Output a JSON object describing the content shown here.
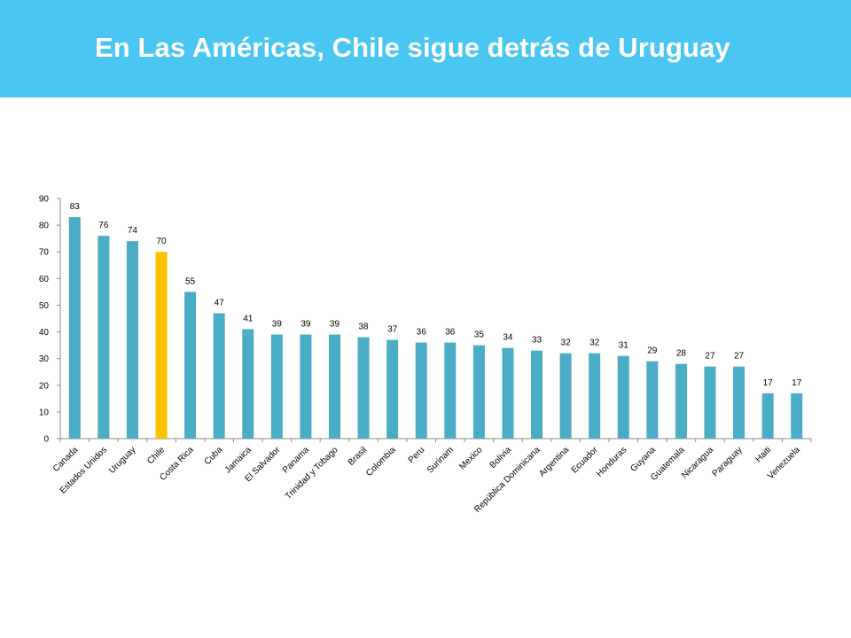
{
  "slide": {
    "title": "En Las Américas, Chile sigue detrás de Uruguay",
    "header_color": "#4ac6f2",
    "title_color": "#ffffff"
  },
  "chart_data": {
    "type": "bar",
    "categories": [
      "Canada",
      "Estados Unidos",
      "Uruguay",
      "Chile",
      "Costa Rica",
      "Cuba",
      "Jamaica",
      "El Salvador",
      "Panama",
      "Trinidad y Tobago",
      "Brasil",
      "Colombia",
      "Peru",
      "Surinam",
      "Mexico",
      "Bolivia",
      "República Dominicana",
      "Argentina",
      "Ecuador",
      "Honduras",
      "Guyana",
      "Guatemala",
      "Nicaragua",
      "Paraguay",
      "Haiti",
      "Venezuela"
    ],
    "values": [
      83,
      76,
      74,
      70,
      55,
      47,
      41,
      39,
      39,
      39,
      38,
      37,
      36,
      36,
      35,
      34,
      33,
      32,
      32,
      31,
      29,
      28,
      27,
      27,
      17,
      17
    ],
    "highlight": "Chile",
    "bar_color": "#4bacc6",
    "highlight_color": "#ffc000",
    "ylim": [
      0,
      90
    ],
    "yticks": [
      0,
      10,
      20,
      30,
      40,
      50,
      60,
      70,
      80,
      90
    ],
    "data_labels": true,
    "grid": false,
    "legend": "none"
  }
}
